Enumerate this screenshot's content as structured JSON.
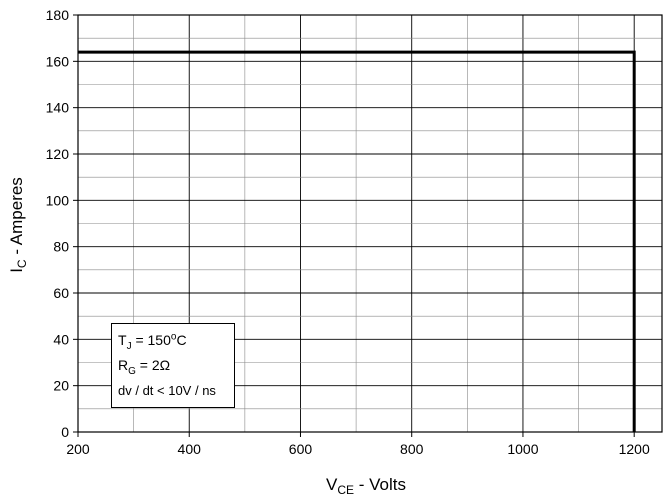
{
  "chart_data": {
    "type": "line",
    "xlabel": {
      "main": "V",
      "sub": "CE",
      "rest": " - Volts"
    },
    "ylabel": {
      "main": "I",
      "sub": "C",
      "rest": " - Amperes"
    },
    "xlim": [
      200,
      1250
    ],
    "ylim": [
      0,
      180
    ],
    "x_ticks": [
      200,
      400,
      600,
      800,
      1000,
      1200
    ],
    "y_ticks": [
      0,
      20,
      40,
      60,
      80,
      100,
      120,
      140,
      160,
      180
    ],
    "x_minor_step": 100,
    "y_minor_step": 10,
    "grid": true,
    "series": [
      {
        "x": [
          200,
          1200,
          1200
        ],
        "y": [
          164,
          164,
          0
        ],
        "color": "#000000"
      }
    ],
    "annotation": {
      "line1": {
        "main": "T",
        "sub": "J",
        "rest": " = 150",
        "sup": "o",
        "tail": "C"
      },
      "line2": {
        "main": "R",
        "sub": "G",
        "rest": " = 2Ω"
      },
      "line3": "dv / dt < 10V / ns"
    }
  }
}
